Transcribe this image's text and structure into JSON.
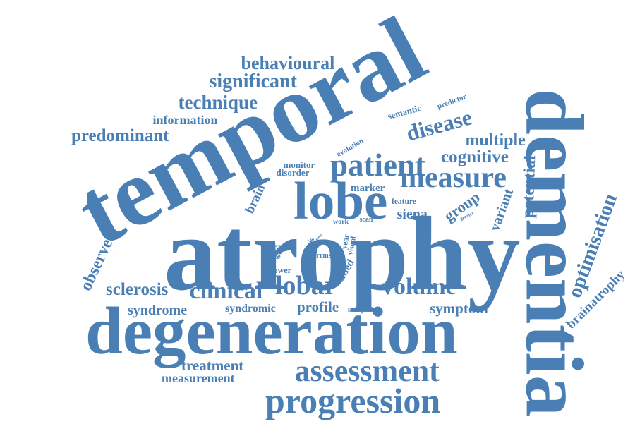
{
  "color": "#4a7fb5",
  "words": [
    {
      "id": "temporal",
      "text": "temporal"
    },
    {
      "id": "atrophy",
      "text": "atrophy"
    },
    {
      "id": "degeneration",
      "text": "degeneration"
    },
    {
      "id": "dementia",
      "text": "dementia"
    },
    {
      "id": "lobe",
      "text": "lobe"
    },
    {
      "id": "progression",
      "text": "progression"
    },
    {
      "id": "assessment",
      "text": "assessment"
    },
    {
      "id": "patient",
      "text": "patient"
    },
    {
      "id": "disease",
      "text": "disease"
    },
    {
      "id": "measure",
      "text": "measure"
    },
    {
      "id": "clinical",
      "text": "clinical"
    },
    {
      "id": "lobar",
      "text": "lobar"
    },
    {
      "id": "volume",
      "text": "volume"
    },
    {
      "id": "sclerosis",
      "text": "sclerosis"
    },
    {
      "id": "behavioural",
      "text": "behavioural"
    },
    {
      "id": "significant",
      "text": "significant"
    },
    {
      "id": "technique",
      "text": "technique"
    },
    {
      "id": "predominant",
      "text": "predominant"
    },
    {
      "id": "information",
      "text": "information"
    },
    {
      "id": "cognitive",
      "text": "cognitive"
    },
    {
      "id": "multiple",
      "text": "multiple"
    },
    {
      "id": "group",
      "text": "group"
    },
    {
      "id": "siena",
      "text": "siena"
    },
    {
      "id": "optimisation",
      "text": "optimisation"
    },
    {
      "id": "brainatrophy",
      "text": "brainatrophy"
    },
    {
      "id": "symptom",
      "text": "symptom"
    },
    {
      "id": "profile",
      "text": "profile"
    },
    {
      "id": "syndrome",
      "text": "syndrome"
    },
    {
      "id": "syndromic",
      "text": "syndromic"
    },
    {
      "id": "treatment",
      "text": "treatment"
    },
    {
      "id": "measurement",
      "text": "measurement"
    },
    {
      "id": "observed",
      "text": "observed"
    },
    {
      "id": "brain",
      "text": "brain"
    },
    {
      "id": "marker",
      "text": "marker"
    },
    {
      "id": "variant",
      "text": "variant"
    },
    {
      "id": "potential",
      "text": "potential"
    },
    {
      "id": "predictor",
      "text": "predictor"
    },
    {
      "id": "semantic",
      "text": "semantic"
    },
    {
      "id": "evolution",
      "text": "evolution"
    },
    {
      "id": "monitor",
      "text": "monitor"
    },
    {
      "id": "disorder",
      "text": "disorder"
    },
    {
      "id": "rate",
      "text": "rate"
    },
    {
      "id": "change",
      "text": "change"
    },
    {
      "id": "power",
      "text": "power"
    },
    {
      "id": "sided",
      "text": "sided"
    },
    {
      "id": "subject",
      "text": "subject"
    },
    {
      "id": "feature",
      "text": "feature"
    },
    {
      "id": "greater",
      "text": "greater"
    },
    {
      "id": "work",
      "text": "work"
    },
    {
      "id": "scan",
      "text": "scan"
    },
    {
      "id": "more",
      "text": "more"
    },
    {
      "id": "thesis",
      "text": "thesis"
    },
    {
      "id": "year",
      "text": "year"
    },
    {
      "id": "visual",
      "text": "visual"
    },
    {
      "id": "rrms",
      "text": "rrms"
    }
  ]
}
